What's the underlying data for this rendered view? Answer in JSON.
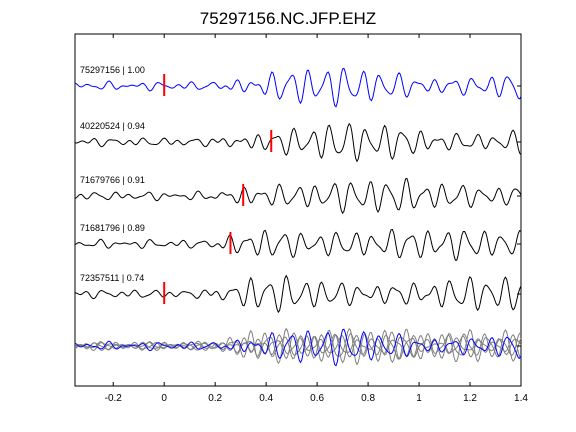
{
  "chart_data": {
    "type": "line",
    "title": "75297156.NC.JFP.EHZ",
    "xlabel": "",
    "ylabel": "",
    "xlim": [
      -0.35,
      1.4
    ],
    "xticks": [
      -0.2,
      0,
      0.2,
      0.4,
      0.6,
      0.8,
      1,
      1.2,
      1.4
    ],
    "xtick_labels": [
      "-0.2",
      "0",
      "0.2",
      "0.4",
      "0.6",
      "0.8",
      "1",
      "1.2",
      "1.4"
    ],
    "grid": false,
    "legend": "none",
    "series": [
      {
        "name": "75297156 | 1.00",
        "pick_time": 0.0,
        "color": "#0000ff",
        "seed": 1
      },
      {
        "name": "40220524 | 0.94",
        "pick_time": 0.42,
        "color": "#000000",
        "seed": 2
      },
      {
        "name": "71679766 | 0.91",
        "pick_time": 0.31,
        "color": "#000000",
        "seed": 3
      },
      {
        "name": "71681796 | 0.89",
        "pick_time": 0.26,
        "color": "#000000",
        "seed": 4
      },
      {
        "name": "72357511 | 0.74",
        "pick_time": 0.0,
        "color": "#000000",
        "seed": 5
      }
    ],
    "stack": {
      "description_colors": {
        "aligned": "#808080",
        "reference": "#0000ff"
      }
    },
    "pick_color": "#ff0000"
  }
}
